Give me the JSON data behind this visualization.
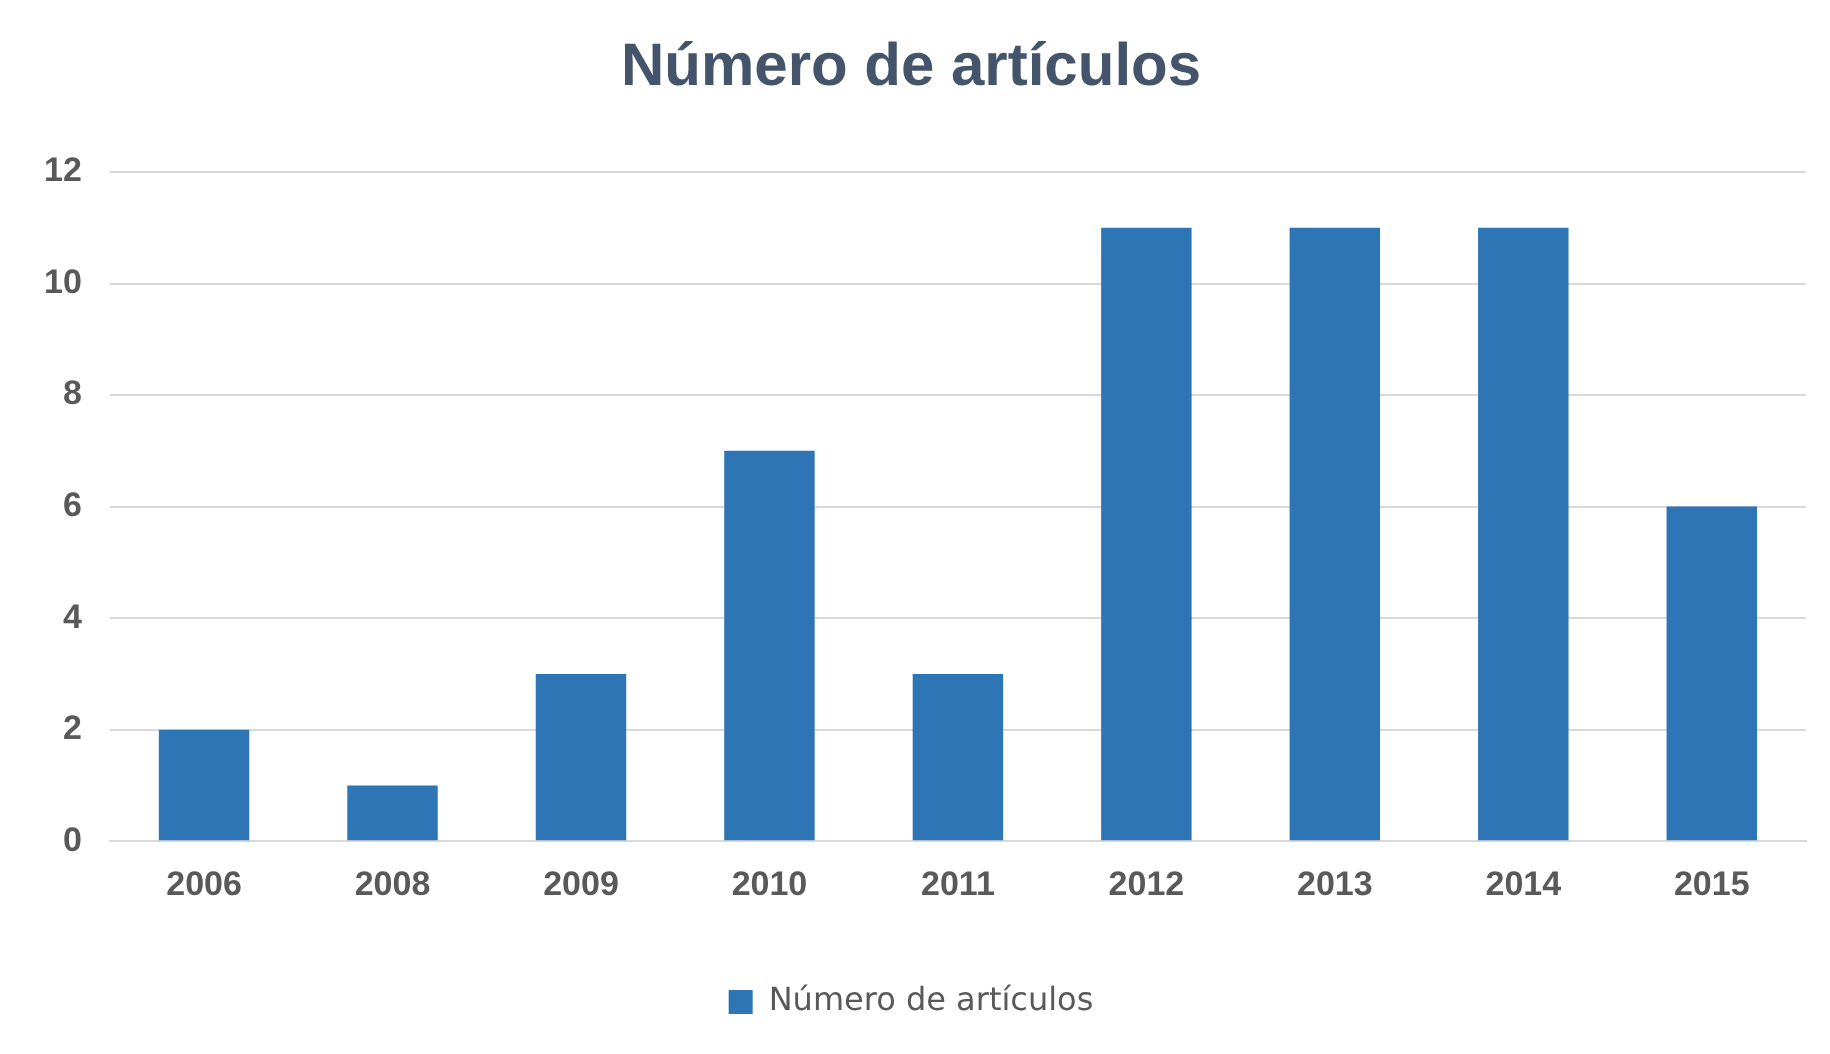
{
  "chart_data": {
    "type": "bar",
    "title": "Número de artículos",
    "categories": [
      "2006",
      "2008",
      "2009",
      "2010",
      "2011",
      "2012",
      "2013",
      "2014",
      "2015"
    ],
    "series": [
      {
        "name": "Número de artículos",
        "color": "#2e75b6",
        "values": [
          2,
          1,
          3,
          7,
          3,
          11,
          11,
          11,
          6
        ]
      }
    ],
    "ylim": [
      0,
      12
    ],
    "yticks": [
      0,
      2,
      4,
      6,
      8,
      10,
      12
    ],
    "grid": "y",
    "legend": "bottom"
  }
}
